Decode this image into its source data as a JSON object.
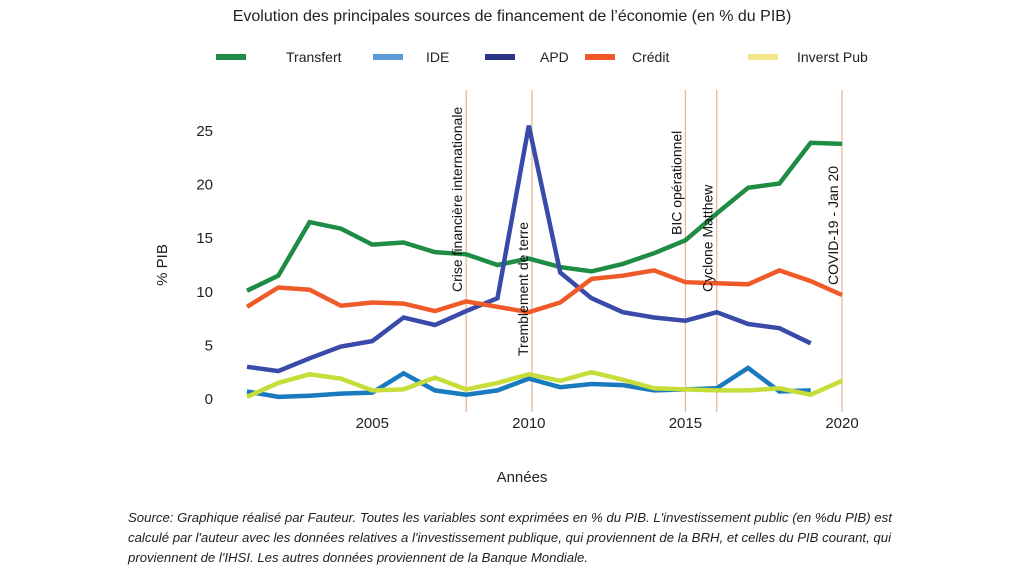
{
  "chart_data": {
    "type": "line",
    "title": "Evolution des principales sources de financement de l’économie (en % du PIB)",
    "xlabel": "Années",
    "ylabel": "% PIB",
    "xlim": [
      2001,
      2020
    ],
    "ylim": [
      0,
      25
    ],
    "x_ticks": [
      2005,
      2010,
      2015,
      2020
    ],
    "y_ticks": [
      0,
      5,
      10,
      15,
      20,
      25
    ],
    "grid": false,
    "legend_position": "top",
    "x": [
      2001,
      2002,
      2003,
      2004,
      2005,
      2006,
      2007,
      2008,
      2009,
      2010,
      2011,
      2012,
      2013,
      2014,
      2015,
      2016,
      2017,
      2018,
      2019,
      2020
    ],
    "series": [
      {
        "name": "Transfert",
        "color": "#1e8c45",
        "values": [
          10.1,
          11.5,
          16.5,
          15.9,
          14.4,
          14.6,
          13.7,
          13.5,
          12.5,
          13.1,
          12.3,
          11.9,
          12.6,
          13.6,
          14.8,
          17.3,
          19.7,
          20.1,
          23.9,
          23.8
        ]
      },
      {
        "name": "IDE",
        "color": "#1a7abf",
        "values": [
          0.7,
          0.2,
          0.3,
          0.5,
          0.6,
          2.4,
          0.8,
          0.4,
          0.8,
          1.9,
          1.1,
          1.4,
          1.3,
          0.8,
          0.9,
          1.0,
          2.9,
          0.7,
          0.8,
          null
        ]
      },
      {
        "name": "APD",
        "color": "#3a4aa8",
        "values": [
          3.0,
          2.6,
          3.8,
          4.9,
          5.4,
          7.6,
          6.9,
          8.2,
          9.4,
          25.5,
          11.8,
          9.4,
          8.1,
          7.6,
          7.3,
          8.1,
          7.0,
          6.6,
          5.2,
          null
        ]
      },
      {
        "name": "Crédit",
        "color": "#f05a28",
        "values": [
          8.6,
          10.4,
          10.2,
          8.7,
          9.0,
          8.9,
          8.2,
          9.1,
          8.6,
          8.1,
          9.0,
          11.2,
          11.5,
          12.0,
          10.9,
          10.8,
          10.7,
          12.0,
          11.0,
          9.7
        ]
      },
      {
        "name": "Inverst Pub",
        "color": "#c6dd3a",
        "values": [
          0.2,
          1.5,
          2.3,
          1.9,
          0.8,
          0.9,
          2.0,
          0.9,
          1.5,
          2.3,
          1.7,
          2.5,
          1.8,
          1.0,
          0.9,
          0.8,
          0.8,
          1.0,
          0.4,
          1.7
        ]
      }
    ],
    "legend": [
      {
        "label": "Transfert",
        "color": "#1e8c45"
      },
      {
        "label": "IDE",
        "color": "#5b9bd5"
      },
      {
        "label": "APD",
        "color": "#2a3585"
      },
      {
        "label": "Crédit",
        "color": "#f05a28"
      },
      {
        "label": "Inverst Pub",
        "color": "#f2e88a"
      }
    ],
    "annotations": [
      {
        "x": 2008.0,
        "label": "Crise financière internationale"
      },
      {
        "x": 2010.1,
        "label": "Tremblement de terre"
      },
      {
        "x": 2015.0,
        "label": "BIC opérationnel"
      },
      {
        "x": 2016.0,
        "label": "Cyclone Matthew"
      },
      {
        "x": 2020.0,
        "label": "COVID-19 - Jan 20"
      }
    ],
    "annotation_line_color": "#e8b89a"
  },
  "footnote": "Source: Graphique réalisé par Fauteur. Toutes les variables sont exprimées en % du PIB. L'investissement public (en %du PIB) est calculé par l'auteur avec les données relatives a l'investissement publique, qui proviennent de la BRH, et celles du PIB courant, qui proviennent de l'IHSI. Les autres données proviennent de la Banque Mondiale."
}
